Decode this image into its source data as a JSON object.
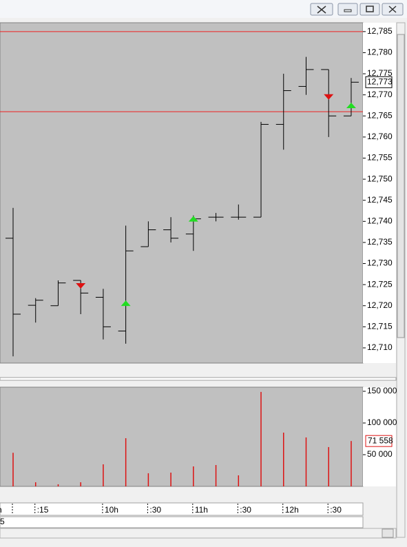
{
  "chart_data": [
    {
      "type": "ohlc",
      "open": [
        12736,
        12720.1,
        12720,
        12726,
        12722,
        12714,
        12734,
        12738,
        12737,
        12741,
        12741,
        12741,
        12763,
        12772,
        12776,
        12765
      ],
      "high": [
        12743.2,
        12721.8,
        12726,
        12726,
        12724,
        12739,
        12740,
        12741,
        12741.4,
        12742,
        12744,
        12763.6,
        12775,
        12779,
        12776,
        12774
      ],
      "low": [
        12708,
        12716,
        12720,
        12718,
        12712,
        12711,
        12734,
        12735,
        12733,
        12740,
        12740.4,
        12741,
        12757,
        12770,
        12760,
        12765
      ],
      "close": [
        12718,
        12721.3,
        12725.4,
        12723,
        12715,
        12733,
        12738,
        12736,
        12740.6,
        12741,
        12741,
        12763,
        12771,
        12776,
        12765,
        12773
      ],
      "color": "#000000",
      "buy_signals": [
        null,
        null,
        null,
        null,
        null,
        12720.6,
        null,
        null,
        12740.6,
        null,
        null,
        null,
        null,
        null,
        null,
        12767.5
      ],
      "sell_signals": [
        null,
        null,
        null,
        12724.7,
        null,
        null,
        null,
        null,
        null,
        null,
        null,
        null,
        null,
        null,
        12769.5,
        null
      ],
      "buy_color": "#22dd22",
      "sell_color": "#dd1111",
      "hlines": [
        12785,
        12766
      ],
      "hline_color": "#ee2222",
      "current": {
        "value": 12773,
        "label": "12,773"
      },
      "ylim": [
        12706.4,
        12787.1
      ],
      "yticks": [
        {
          "value": 12710,
          "label": "12,710"
        },
        {
          "value": 12715,
          "label": "12,715"
        },
        {
          "value": 12720,
          "label": "12,720"
        },
        {
          "value": 12725,
          "label": "12,725"
        },
        {
          "value": 12730,
          "label": "12,730"
        },
        {
          "value": 12735,
          "label": "12,735"
        },
        {
          "value": 12740,
          "label": "12,740"
        },
        {
          "value": 12745,
          "label": "12,745"
        },
        {
          "value": 12750,
          "label": "12,750"
        },
        {
          "value": 12755,
          "label": "12,755"
        },
        {
          "value": 12760,
          "label": "12,760"
        },
        {
          "value": 12765,
          "label": "12,765"
        },
        {
          "value": 12770,
          "label": "12,770"
        },
        {
          "value": 12775,
          "label": "12,775"
        },
        {
          "value": 12780,
          "label": "12,780"
        },
        {
          "value": 12785,
          "label": "12,785"
        }
      ]
    },
    {
      "type": "bar",
      "categories": [
        "h",
        ":15",
        null,
        null,
        "10h",
        null,
        ":30",
        null,
        "11h",
        null,
        ":30",
        null,
        "12h",
        null,
        ":30",
        null
      ],
      "values": [
        53000,
        6500,
        3300,
        6500,
        34800,
        76000,
        20700,
        21700,
        31500,
        33700,
        17400,
        149000,
        84800,
        77200,
        62000,
        71558
      ],
      "color": "#dd1111",
      "current": {
        "value": 71558,
        "label": "71 558"
      },
      "ylim": [
        0,
        156500
      ],
      "yticks": [
        {
          "value": 50000,
          "label": "50 000"
        },
        {
          "value": 100000,
          "label": "100 000"
        },
        {
          "value": 150000,
          "label": "150 000"
        }
      ],
      "footer": "5"
    }
  ]
}
